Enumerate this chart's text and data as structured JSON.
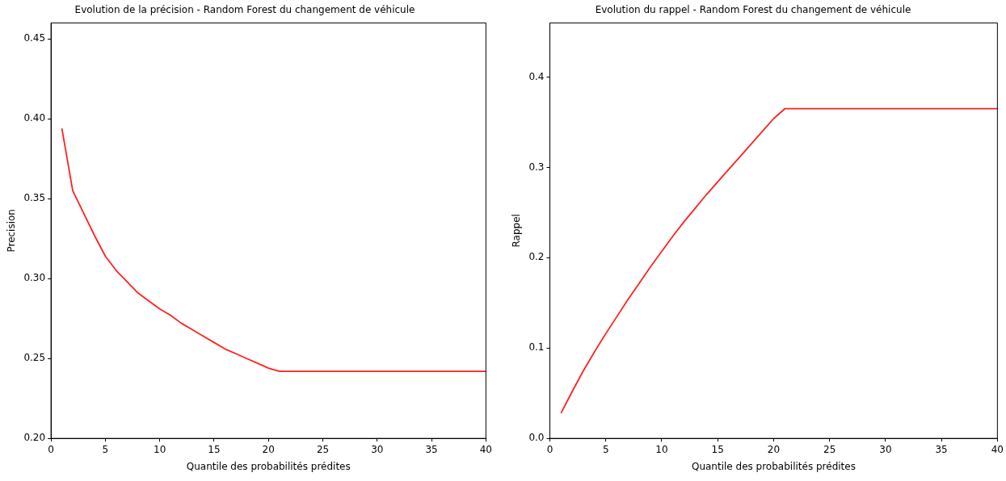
{
  "chart_data": [
    {
      "type": "line",
      "title": "Evolution de la précision - Random Forest du changement de véhicule",
      "xlabel": "Quantile des probabilités prédites",
      "ylabel": "Precision",
      "x": [
        1,
        2,
        3,
        4,
        5,
        6,
        7,
        8,
        9,
        10,
        11,
        12,
        13,
        14,
        15,
        16,
        17,
        18,
        19,
        20,
        21,
        22,
        23,
        24,
        25,
        26,
        27,
        28,
        29,
        30,
        31,
        32,
        33,
        34,
        35,
        36,
        37,
        38,
        39,
        40
      ],
      "series": [
        {
          "color": "#ff2020",
          "values": [
            0.394,
            0.355,
            0.341,
            0.327,
            0.314,
            0.305,
            0.298,
            0.291,
            0.286,
            0.281,
            0.277,
            0.272,
            0.268,
            0.264,
            0.26,
            0.256,
            0.253,
            0.25,
            0.247,
            0.244,
            0.242,
            0.242,
            0.242,
            0.242,
            0.242,
            0.242,
            0.242,
            0.242,
            0.242,
            0.242,
            0.242,
            0.242,
            0.242,
            0.242,
            0.242,
            0.242,
            0.242,
            0.242,
            0.242,
            0.242
          ]
        }
      ],
      "xlim": [
        0,
        40
      ],
      "xticks": [
        0,
        5,
        10,
        15,
        20,
        25,
        30,
        35,
        40
      ],
      "ylim": [
        0.2,
        0.46
      ],
      "yticks": [
        {
          "value": 0.2,
          "label": "0.20"
        },
        {
          "value": 0.25,
          "label": "0.25"
        },
        {
          "value": 0.3,
          "label": "0.30"
        },
        {
          "value": 0.35,
          "label": "0.35"
        },
        {
          "value": 0.4,
          "label": "0.40"
        },
        {
          "value": 0.45,
          "label": "0.45"
        }
      ],
      "grid": false
    },
    {
      "type": "line",
      "title": "Evolution du rappel - Random Forest du changement de véhicule",
      "xlabel": "Quantile des probabilités prédites",
      "ylabel": "Rappel",
      "x": [
        1,
        2,
        3,
        4,
        5,
        6,
        7,
        8,
        9,
        10,
        11,
        12,
        13,
        14,
        15,
        16,
        17,
        18,
        19,
        20,
        21,
        22,
        23,
        24,
        25,
        26,
        27,
        28,
        29,
        30,
        31,
        32,
        33,
        34,
        35,
        36,
        37,
        38,
        39,
        40
      ],
      "series": [
        {
          "color": "#ff2020",
          "values": [
            0.028,
            0.052,
            0.075,
            0.096,
            0.116,
            0.135,
            0.154,
            0.172,
            0.19,
            0.207,
            0.224,
            0.24,
            0.255,
            0.27,
            0.284,
            0.298,
            0.312,
            0.326,
            0.34,
            0.354,
            0.365,
            0.365,
            0.365,
            0.365,
            0.365,
            0.365,
            0.365,
            0.365,
            0.365,
            0.365,
            0.365,
            0.365,
            0.365,
            0.365,
            0.365,
            0.365,
            0.365,
            0.365,
            0.365,
            0.365
          ]
        }
      ],
      "xlim": [
        0,
        40
      ],
      "xticks": [
        0,
        5,
        10,
        15,
        20,
        25,
        30,
        35,
        40
      ],
      "ylim": [
        0,
        0.46
      ],
      "yticks": [
        {
          "value": 0,
          "label": "0.0"
        },
        {
          "value": 0.1,
          "label": "0.1"
        },
        {
          "value": 0.2,
          "label": "0.2"
        },
        {
          "value": 0.3,
          "label": "0.3"
        },
        {
          "value": 0.4,
          "label": "0.4"
        }
      ],
      "grid": false
    }
  ]
}
